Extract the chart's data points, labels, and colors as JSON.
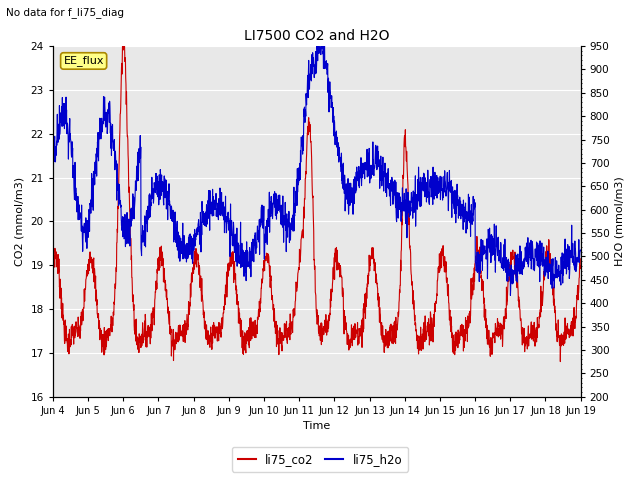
{
  "title": "LI7500 CO2 and H2O",
  "suptitle": "No data for f_li75_diag",
  "xlabel": "Time",
  "ylabel_left": "CO2 (mmol/m3)",
  "ylabel_right": "H2O (mmol/m3)",
  "ylim_left": [
    16.0,
    24.0
  ],
  "ylim_right": [
    200,
    950
  ],
  "yticks_left": [
    16.0,
    17.0,
    18.0,
    19.0,
    20.0,
    21.0,
    22.0,
    23.0,
    24.0
  ],
  "yticks_right": [
    200,
    250,
    300,
    350,
    400,
    450,
    500,
    550,
    600,
    650,
    700,
    750,
    800,
    850,
    900,
    950
  ],
  "xtick_labels": [
    "Jun 4",
    "Jun 5",
    "Jun 6",
    "Jun 7",
    "Jun 8",
    "Jun 9",
    "Jun 10",
    "Jun 11",
    "Jun 12",
    "Jun 13",
    "Jun 14",
    "Jun 15",
    "Jun 16",
    "Jun 17",
    "Jun 18",
    "Jun 19"
  ],
  "color_co2": "#cc0000",
  "color_h2o": "#0000cc",
  "legend_label_co2": "li75_co2",
  "legend_label_h2o": "li75_h2o",
  "annotation_text": "EE_flux",
  "background_color": "#ffffff",
  "plot_bg_color": "#e8e8e8",
  "grid_color": "#ffffff",
  "n_points": 2000
}
